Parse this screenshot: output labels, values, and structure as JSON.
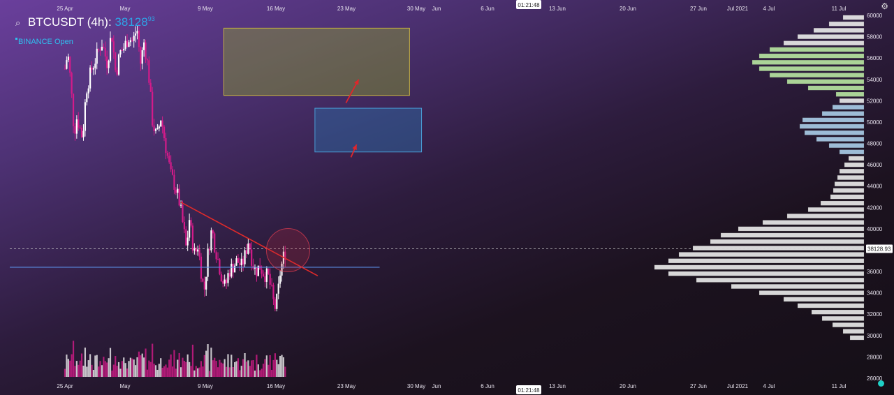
{
  "legend": {
    "symbol": "BTCUSDT (4h):",
    "price": "38128",
    "price_decimals": "93",
    "exchange": "BINANCE Open"
  },
  "colors": {
    "up": "#ffffff",
    "down": "#d41b8a",
    "trendline": "#e02a2a",
    "support": "#5b8fe8",
    "zone_upper_stroke": "#c6b342",
    "zone_lower_stroke": "#4a9dd6",
    "profile": "#e8e8e8",
    "profile_green": "#b6e3a0",
    "profile_blue": "#a8cbe6"
  },
  "time_labels": {
    "top": [
      "25 Apr",
      "May",
      "9 May",
      "16 May",
      "23 May",
      "30 May",
      "Jun",
      "6 Jun",
      "13 Jun",
      "20 Jun",
      "27 Jun",
      "Jul 2021",
      "4 Jul",
      "11 Jul"
    ],
    "bottom": [
      "25 Apr",
      "May",
      "9 May",
      "16 May",
      "23 May",
      "30 May",
      "Jun",
      "6 Jun",
      "13 Jun",
      "20 Jun",
      "27 Jun",
      "Jul 2021",
      "4 Jul",
      "11 Jul"
    ],
    "cursor_time": "01:21:48"
  },
  "chart_data": {
    "type": "candlestick",
    "title": "BTCUSDT (4h)",
    "exchange": "BINANCE",
    "last_price": 38128.93,
    "last_price_label": "38128.93",
    "ylim": [
      26000,
      60000
    ],
    "y_ticks": [
      "60000",
      "58000",
      "56000",
      "54000",
      "52000",
      "50000",
      "48000",
      "46000",
      "44000",
      "42000",
      "40000",
      "38000",
      "36000",
      "34000",
      "32000",
      "30000",
      "28000",
      "26000"
    ],
    "series": [
      {
        "name": "price_path",
        "points": [
          [
            0,
            55000
          ],
          [
            0.04,
            56500
          ],
          [
            0.07,
            54500
          ],
          [
            0.1,
            52000
          ],
          [
            0.13,
            49000
          ],
          [
            0.17,
            50500
          ],
          [
            0.21,
            49500
          ],
          [
            0.25,
            48500
          ],
          [
            0.3,
            53000
          ],
          [
            0.38,
            55000
          ],
          [
            0.44,
            56000
          ],
          [
            0.52,
            57500
          ],
          [
            0.6,
            55500
          ],
          [
            0.66,
            58500
          ],
          [
            0.72,
            54500
          ],
          [
            0.78,
            56500
          ],
          [
            0.84,
            57000
          ],
          [
            0.9,
            58000
          ],
          [
            0.96,
            57500
          ],
          [
            1.02,
            58800
          ],
          [
            1.07,
            55500
          ],
          [
            1.12,
            57500
          ],
          [
            1.18,
            55000
          ],
          [
            1.24,
            50000
          ],
          [
            1.3,
            48500
          ],
          [
            1.36,
            50500
          ],
          [
            1.42,
            48000
          ],
          [
            1.5,
            45000
          ],
          [
            1.56,
            44000
          ],
          [
            1.62,
            42500
          ],
          [
            1.68,
            40000
          ],
          [
            1.72,
            38000
          ],
          [
            1.76,
            41000
          ],
          [
            1.8,
            39000
          ],
          [
            1.84,
            37500
          ],
          [
            1.88,
            38500
          ],
          [
            1.93,
            36000
          ],
          [
            1.97,
            34000
          ],
          [
            2.03,
            38000
          ],
          [
            2.08,
            40000
          ],
          [
            2.12,
            38500
          ],
          [
            2.17,
            37000
          ],
          [
            2.22,
            35500
          ],
          [
            2.27,
            34500
          ],
          [
            2.32,
            36000
          ],
          [
            2.38,
            36500
          ],
          [
            2.44,
            37000
          ],
          [
            2.5,
            36500
          ],
          [
            2.55,
            37500
          ],
          [
            2.6,
            39000
          ],
          [
            2.65,
            37000
          ],
          [
            2.7,
            36000
          ],
          [
            2.76,
            36500
          ],
          [
            2.82,
            35800
          ],
          [
            2.88,
            35500
          ],
          [
            2.93,
            34000
          ],
          [
            2.97,
            32500
          ],
          [
            3.01,
            33500
          ],
          [
            3.05,
            36000
          ],
          [
            3.1,
            37500
          ],
          [
            3.14,
            38128
          ]
        ]
      }
    ],
    "trendline": {
      "from": [
        1.64,
        42500
      ],
      "to": [
        3.58,
        35600
      ]
    },
    "support_level": 36400,
    "current_price_line": 38128.93,
    "zones": [
      {
        "name": "upper",
        "from_x": 2.25,
        "to_x": 4.88,
        "low": 52500,
        "high": 58800
      },
      {
        "name": "lower",
        "from_x": 3.54,
        "to_x": 5.05,
        "low": 47200,
        "high": 51300
      }
    ],
    "arrows": [
      {
        "from": [
          3.98,
          51800
        ],
        "to": [
          4.16,
          54000
        ]
      },
      {
        "from": [
          4.05,
          46700
        ],
        "to": [
          4.13,
          47900
        ]
      }
    ],
    "volume_profile": [
      [
        59800,
        30
      ],
      [
        59200,
        50
      ],
      [
        58600,
        72
      ],
      [
        58000,
        95
      ],
      [
        57400,
        115
      ],
      [
        56800,
        135
      ],
      [
        56200,
        150
      ],
      [
        55600,
        160
      ],
      [
        55000,
        150
      ],
      [
        54400,
        135
      ],
      [
        53800,
        110
      ],
      [
        53200,
        80
      ],
      [
        52600,
        40
      ],
      [
        52000,
        35
      ],
      [
        51400,
        45
      ],
      [
        50800,
        60
      ],
      [
        50200,
        88
      ],
      [
        49600,
        92
      ],
      [
        49000,
        85
      ],
      [
        48400,
        68
      ],
      [
        47800,
        50
      ],
      [
        47200,
        35
      ],
      [
        46600,
        22
      ],
      [
        46000,
        28
      ],
      [
        45400,
        35
      ],
      [
        44800,
        38
      ],
      [
        44200,
        42
      ],
      [
        43600,
        44
      ],
      [
        43000,
        48
      ],
      [
        42400,
        62
      ],
      [
        41800,
        80
      ],
      [
        41200,
        110
      ],
      [
        40600,
        145
      ],
      [
        40000,
        180
      ],
      [
        39400,
        205
      ],
      [
        38800,
        220
      ],
      [
        38200,
        245
      ],
      [
        37600,
        265
      ],
      [
        37000,
        280
      ],
      [
        36400,
        300
      ],
      [
        35800,
        280
      ],
      [
        35200,
        240
      ],
      [
        34600,
        190
      ],
      [
        34000,
        150
      ],
      [
        33400,
        115
      ],
      [
        32800,
        95
      ],
      [
        32200,
        75
      ],
      [
        31600,
        60
      ],
      [
        31000,
        45
      ],
      [
        30400,
        30
      ],
      [
        29800,
        20
      ]
    ],
    "grid": false,
    "legend_position": "top-left"
  }
}
